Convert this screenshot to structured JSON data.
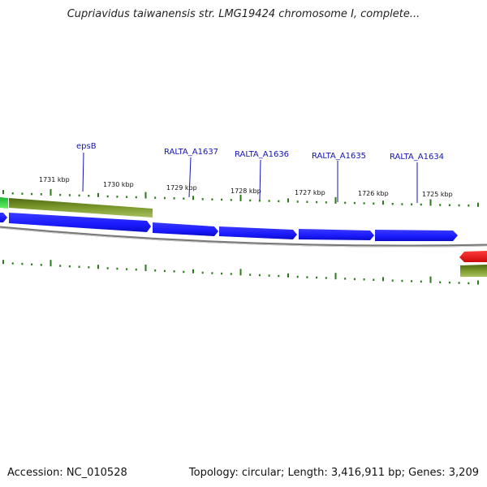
{
  "title": "Cupriavidus taiwanensis str. LMG19424 chromosome I, complete...",
  "footer": {
    "accession": "Accession: NC_010528",
    "summary": "Topology: circular; Length: 3,416,911 bp; Genes: 3,209"
  },
  "scale_labels": [
    "1731 kbp",
    "1730 kbp",
    "1729 kbp",
    "1728 kbp",
    "1727 kbp",
    "1726 kbp",
    "1725 kbp"
  ],
  "gene_labels": [
    "epsB",
    "RALTA_A1637",
    "RALTA_A1636",
    "RALTA_A1635",
    "RALTA_A1634"
  ],
  "colors": {
    "protein_gene": "#1a1aff",
    "green_feature": "#6b8e23",
    "bright_green_feature": "#22cc33",
    "red_feature": "#ff1a1a",
    "backbone": "#888888",
    "tick": "#2a7a1a",
    "label": "#1414b4"
  }
}
